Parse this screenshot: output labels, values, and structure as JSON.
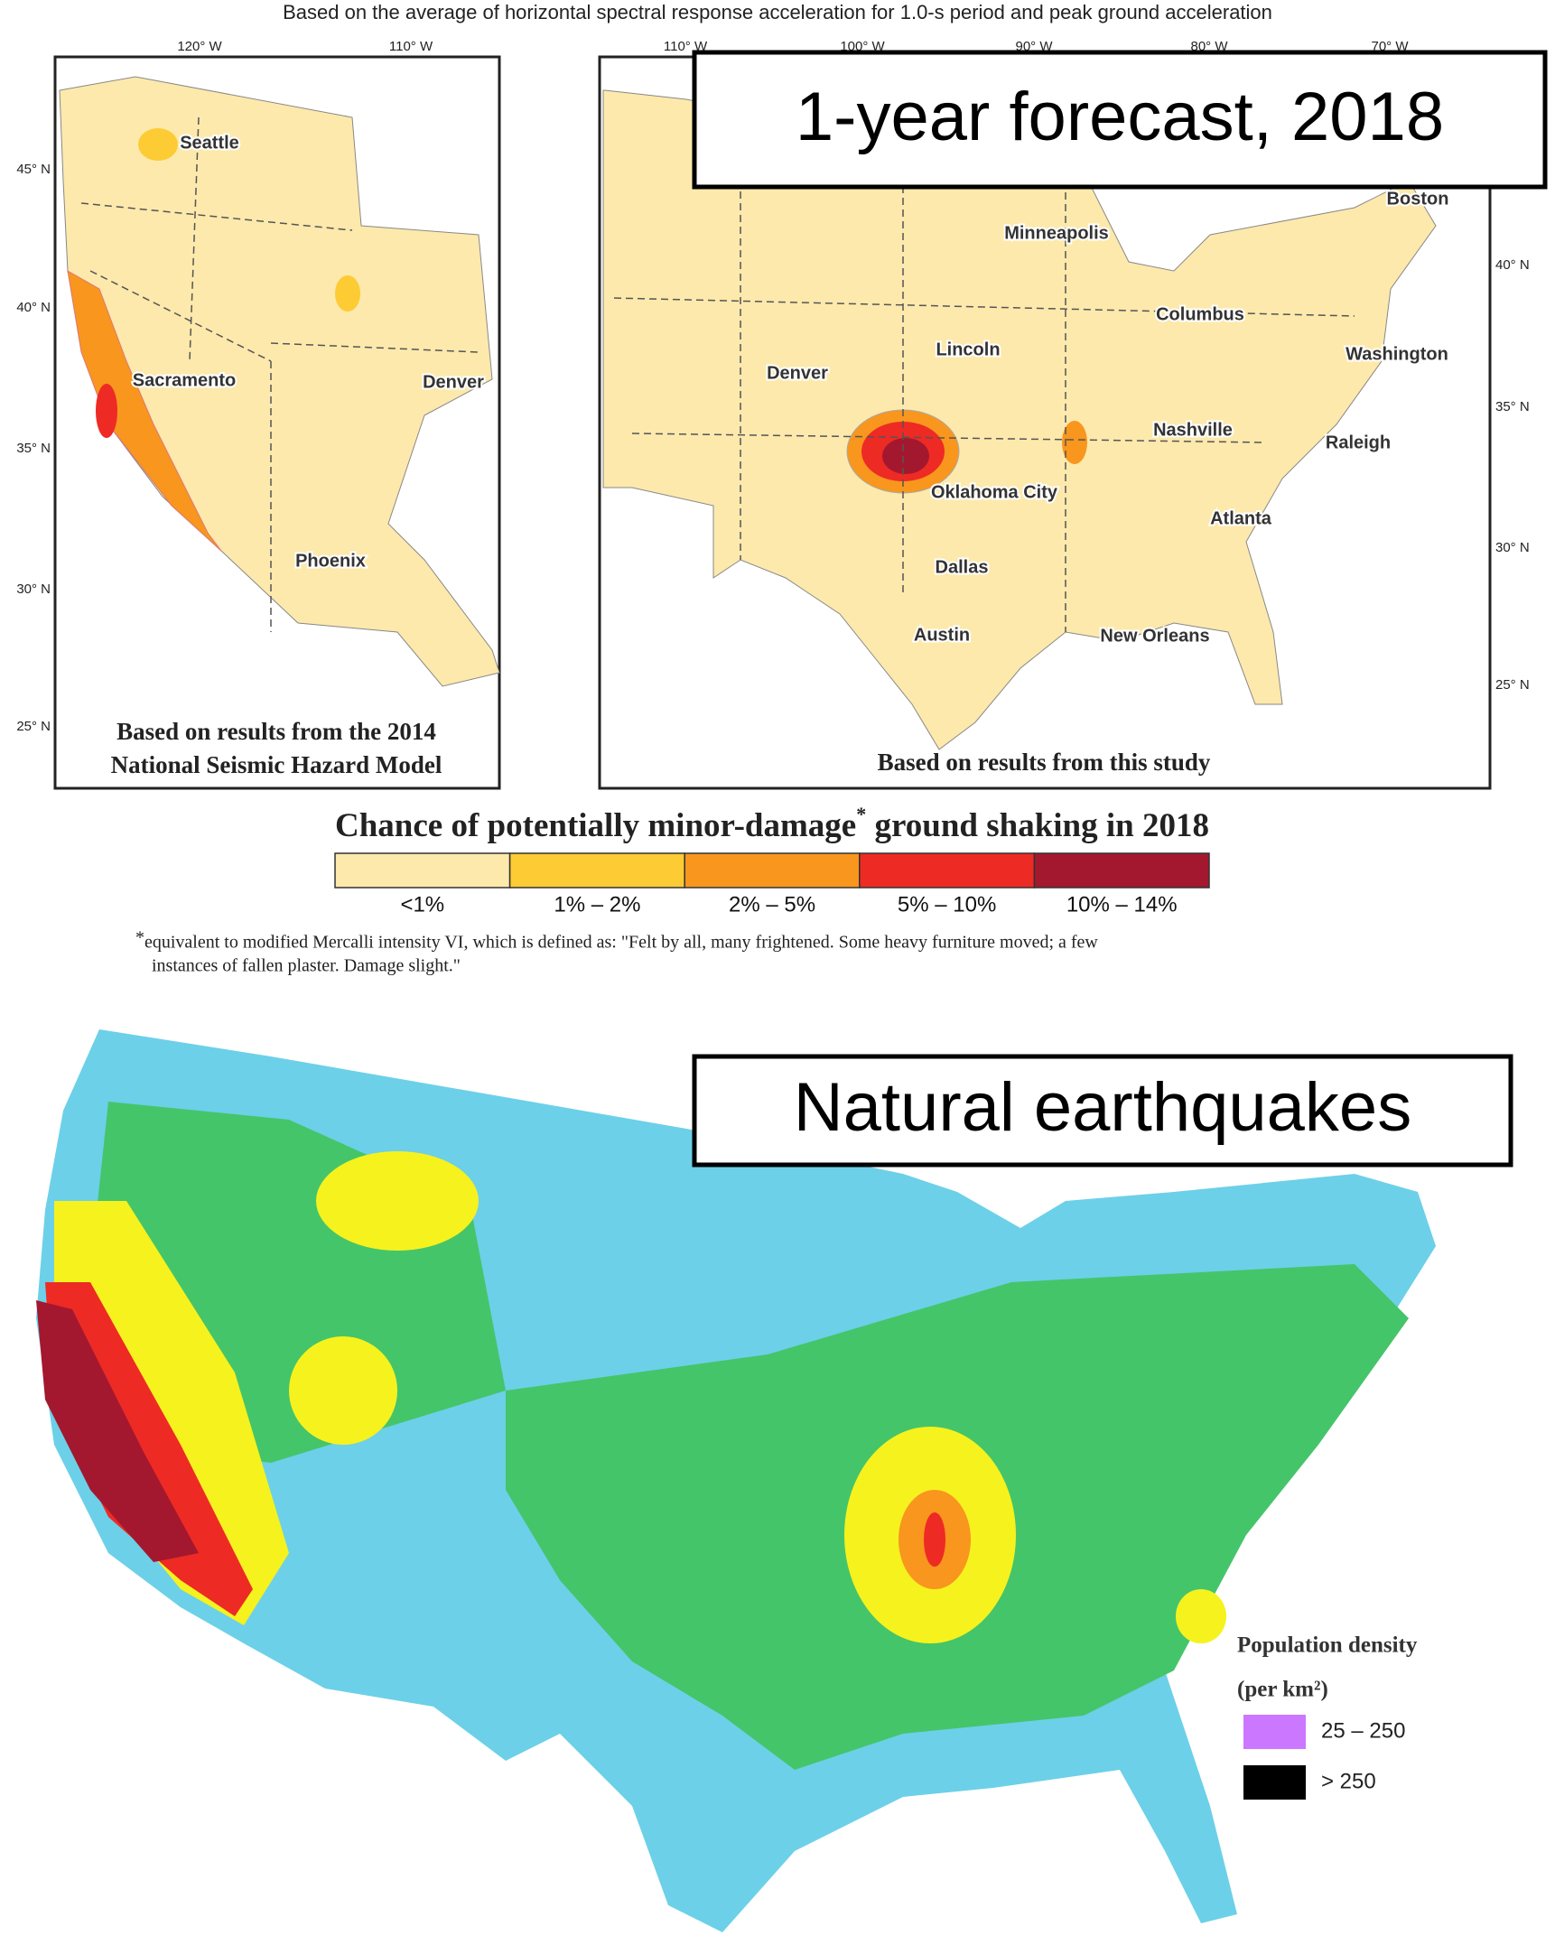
{
  "caption": "Based on the average of horizontal spectral response acceleration for 1.0-s period and peak ground acceleration",
  "left_map": {
    "lon_ticks": [
      "120° W",
      "110° W"
    ],
    "lat_ticks": [
      "45° N",
      "40° N",
      "35° N",
      "30° N",
      "25° N"
    ],
    "cities": [
      "Seattle",
      "Sacramento",
      "Denver",
      "Phoenix"
    ],
    "note": [
      "Based on results from the 2014",
      "National Seismic Hazard Model"
    ]
  },
  "right_map": {
    "title": "1-year forecast, 2018",
    "lon_ticks": [
      "110° W",
      "100° W",
      "90° W",
      "80° W",
      "70° W"
    ],
    "lat_ticks": [
      "40° N",
      "35° N",
      "30° N",
      "25° N"
    ],
    "cities": [
      "Minneapolis",
      "Boston",
      "Columbus",
      "Lincoln",
      "Washington",
      "Denver",
      "Nashville",
      "Raleigh",
      "Oklahoma City",
      "Atlanta",
      "Dallas",
      "Austin",
      "New Orleans"
    ],
    "note": "Based on results from this study"
  },
  "legend": {
    "title": "Chance of potentially minor-damage",
    "title_mark": "*",
    "title_rest": " ground shaking in 2018",
    "items": [
      {
        "label": "<1%",
        "color": "#fde9ac"
      },
      {
        "label": "1% – 2%",
        "color": "#fdcb33"
      },
      {
        "label": "2% – 5%",
        "color": "#f8961e"
      },
      {
        "label": "5% – 10%",
        "color": "#ee2a24"
      },
      {
        "label": "10% – 14%",
        "color": "#a3182e"
      }
    ]
  },
  "footnote": {
    "mark": "*",
    "lines": [
      "equivalent to modified Mercalli intensity VI, which is defined as: \"Felt by all, many frightened.  Some heavy furniture moved; a few",
      "instances of fallen plaster. Damage slight.\""
    ]
  },
  "bottom_map": {
    "title": "Natural earthquakes",
    "legend": {
      "title": "Population density",
      "unit": "(per km²)",
      "items": [
        {
          "label": "25 – 250",
          "color": "#cc77ff"
        },
        {
          "label": "> 250",
          "color": "#000000"
        }
      ]
    }
  }
}
